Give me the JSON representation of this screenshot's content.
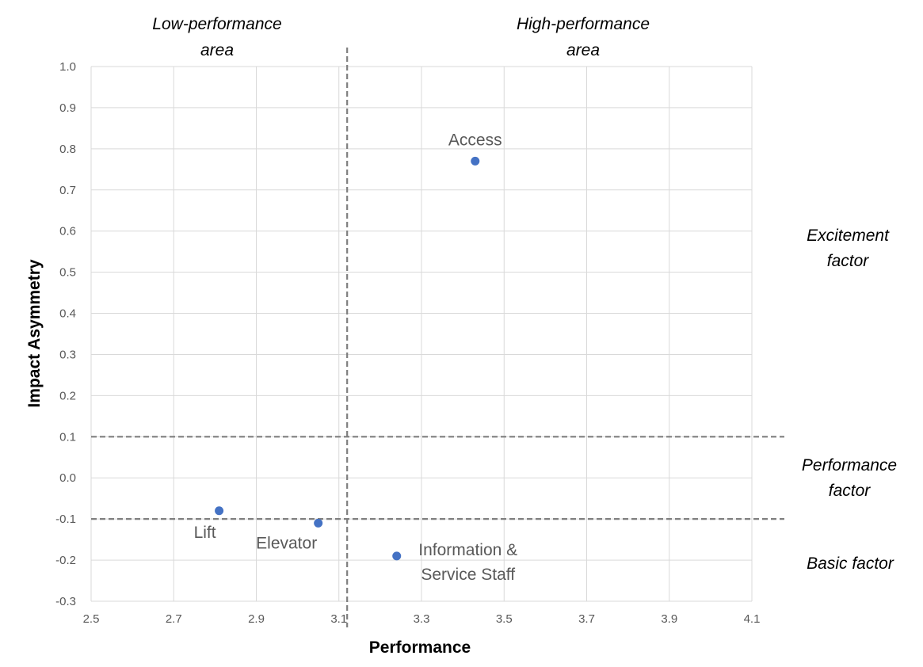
{
  "chart_data": {
    "type": "scatter",
    "xlabel": "Performance",
    "ylabel": "Impact Asymmetry",
    "xlim": [
      2.5,
      4.1
    ],
    "ylim": [
      -0.3,
      1.0
    ],
    "x_ticks": [
      "2.5",
      "2.7",
      "2.9",
      "3.1",
      "3.3",
      "3.5",
      "3.7",
      "3.9",
      "4.1"
    ],
    "y_ticks": [
      "1.0",
      "0.9",
      "0.8",
      "0.7",
      "0.6",
      "0.5",
      "0.4",
      "0.3",
      "0.2",
      "0.1",
      "0.0",
      "-0.1",
      "-0.2",
      "-0.3"
    ],
    "grid": true,
    "point_color": "#4472C4",
    "points": [
      {
        "label_lines": [
          "Access"
        ],
        "x": 3.43,
        "y": 0.77
      },
      {
        "label_lines": [
          "Lift"
        ],
        "x": 2.81,
        "y": -0.08
      },
      {
        "label_lines": [
          "Elevator"
        ],
        "x": 3.05,
        "y": -0.11
      },
      {
        "label_lines": [
          "Information &",
          "Service Staff"
        ],
        "x": 3.24,
        "y": -0.19
      }
    ],
    "reference_lines": {
      "vertical_x": 3.12,
      "horizontal_y": [
        0.1,
        -0.1
      ]
    },
    "area_labels": {
      "low_performance": [
        "Low-performance",
        "area"
      ],
      "high_performance": [
        "High-performance",
        "area"
      ]
    },
    "factor_labels": {
      "excitement": [
        "Excitement",
        "factor"
      ],
      "performance": [
        "Performance",
        "factor"
      ],
      "basic": [
        "Basic factor"
      ]
    }
  }
}
